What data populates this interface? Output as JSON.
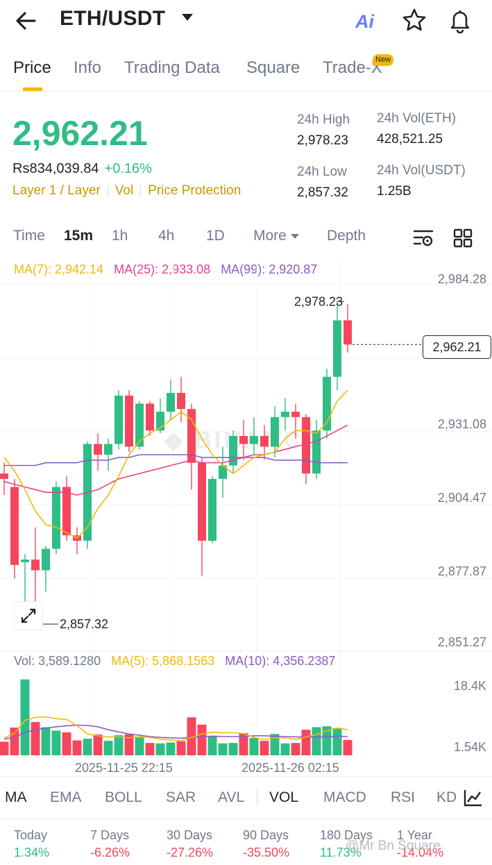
{
  "header": {
    "pair": "ETH/USDT",
    "ai_label": "Ai"
  },
  "tabs": [
    {
      "label": "Price",
      "active": true
    },
    {
      "label": "Info"
    },
    {
      "label": "Trading Data"
    },
    {
      "label": "Square"
    },
    {
      "label": "Trade-X",
      "badge": "New"
    }
  ],
  "ticker": {
    "last_price": "2,962.21",
    "fiat_price": "Rs834,039.84",
    "change_pct": "+0.16%",
    "tags": [
      "Layer 1 / Layer",
      "Vol",
      "Price Protection"
    ],
    "high_label": "24h High",
    "high_value": "2,978.23",
    "low_label": "24h Low",
    "low_value": "2,857.32",
    "vol_base_label": "24h Vol(ETH)",
    "vol_base_value": "428,521.25",
    "vol_quote_label": "24h Vol(USDT)",
    "vol_quote_value": "1.25B"
  },
  "intervals": [
    "Time",
    "15m",
    "1h",
    "4h",
    "1D",
    "More",
    "Depth"
  ],
  "active_interval": "15m",
  "ma_legend": {
    "ma7": "MA(7): 2,942.14",
    "ma25": "MA(25): 2,933.08",
    "ma99": "MA(99): 2,920.87"
  },
  "vol_legend": {
    "vol": "Vol: 3,589.1280",
    "ma5": "MA(5): 5,868.1563",
    "ma10": "MA(10): 4,356.2387"
  },
  "indicators": [
    "MA",
    "EMA",
    "BOLL",
    "SAR",
    "AVL",
    "VOL",
    "MACD",
    "RSI",
    "KD"
  ],
  "performance": [
    {
      "label": "Today",
      "value": "1.34%",
      "trend": "up"
    },
    {
      "label": "7 Days",
      "value": "-6.26%",
      "trend": "down"
    },
    {
      "label": "30 Days",
      "value": "-27.26%",
      "trend": "down"
    },
    {
      "label": "90 Days",
      "value": "-35.50%",
      "trend": "down"
    },
    {
      "label": "180 Days",
      "value": "11.73%",
      "trend": "up"
    },
    {
      "label": "1 Year",
      "value": "-14.04%",
      "trend": "down"
    }
  ],
  "watermark": "@Mr Bn Square",
  "colors": {
    "up": "#2ebd85",
    "down": "#f6465d",
    "accent": "#f0b90b",
    "ma7": "#f0b90b",
    "ma25": "#e83e8c",
    "ma99": "#8b5cc4"
  },
  "chart_data": {
    "type": "candlestick",
    "price_axis_ticks": [
      "2,984.28",
      "2,931.08",
      "2,904.47",
      "2,877.87",
      "2,851.27"
    ],
    "volume_axis_ticks": [
      "18.4K",
      "1.54K"
    ],
    "time_labels": [
      "2025-11-25 22:15",
      "2025-11-26 02:15"
    ],
    "high_marker": "2,978.23",
    "low_marker": "2,857.32",
    "last_price_label": "2,962.21",
    "ylim": [
      2851.27,
      2984.28
    ],
    "candles": [
      {
        "o": 2914,
        "c": 2912,
        "h": 2918,
        "l": 2906,
        "v": 3200
      },
      {
        "o": 2909,
        "c": 2880,
        "h": 2912,
        "l": 2875,
        "v": 6500
      },
      {
        "o": 2881,
        "c": 2882,
        "h": 2884,
        "l": 2858,
        "v": 17800
      },
      {
        "o": 2882,
        "c": 2878,
        "h": 2894,
        "l": 2864,
        "v": 7800
      },
      {
        "o": 2878,
        "c": 2886,
        "h": 2887,
        "l": 2870,
        "v": 6600
      },
      {
        "o": 2886,
        "c": 2909,
        "h": 2911,
        "l": 2884,
        "v": 5800
      },
      {
        "o": 2909,
        "c": 2891,
        "h": 2913,
        "l": 2889,
        "v": 5400
      },
      {
        "o": 2891,
        "c": 2889,
        "h": 2894,
        "l": 2884,
        "v": 3500
      },
      {
        "o": 2889,
        "c": 2925,
        "h": 2926,
        "l": 2886,
        "v": 3900
      },
      {
        "o": 2925,
        "c": 2921,
        "h": 2929,
        "l": 2915,
        "v": 4900
      },
      {
        "o": 2921,
        "c": 2925,
        "h": 2927,
        "l": 2915,
        "v": 3400
      },
      {
        "o": 2925,
        "c": 2943,
        "h": 2945,
        "l": 2923,
        "v": 4700
      },
      {
        "o": 2943,
        "c": 2924,
        "h": 2945,
        "l": 2922,
        "v": 4900
      },
      {
        "o": 2924,
        "c": 2940,
        "h": 2941,
        "l": 2923,
        "v": 4200
      },
      {
        "o": 2940,
        "c": 2930,
        "h": 2941,
        "l": 2928,
        "v": 2900
      },
      {
        "o": 2930,
        "c": 2937,
        "h": 2942,
        "l": 2929,
        "v": 2800
      },
      {
        "o": 2937,
        "c": 2944,
        "h": 2949,
        "l": 2934,
        "v": 3000
      },
      {
        "o": 2944,
        "c": 2938,
        "h": 2950,
        "l": 2933,
        "v": 3300
      },
      {
        "o": 2938,
        "c": 2918,
        "h": 2940,
        "l": 2908,
        "v": 8900
      },
      {
        "o": 2918,
        "c": 2889,
        "h": 2920,
        "l": 2876,
        "v": 7200
      },
      {
        "o": 2889,
        "c": 2912,
        "h": 2913,
        "l": 2888,
        "v": 4500
      },
      {
        "o": 2912,
        "c": 2917,
        "h": 2924,
        "l": 2905,
        "v": 2800
      },
      {
        "o": 2917,
        "c": 2928,
        "h": 2930,
        "l": 2914,
        "v": 2900
      },
      {
        "o": 2928,
        "c": 2925,
        "h": 2934,
        "l": 2919,
        "v": 5200
      },
      {
        "o": 2925,
        "c": 2928,
        "h": 2935,
        "l": 2921,
        "v": 4100
      },
      {
        "o": 2928,
        "c": 2924,
        "h": 2932,
        "l": 2919,
        "v": 3400
      },
      {
        "o": 2924,
        "c": 2935,
        "h": 2939,
        "l": 2920,
        "v": 5000
      },
      {
        "o": 2935,
        "c": 2937,
        "h": 2942,
        "l": 2930,
        "v": 2800
      },
      {
        "o": 2937,
        "c": 2935,
        "h": 2940,
        "l": 2927,
        "v": 2900
      },
      {
        "o": 2935,
        "c": 2914,
        "h": 2936,
        "l": 2910,
        "v": 6000
      },
      {
        "o": 2914,
        "c": 2930,
        "h": 2934,
        "l": 2912,
        "v": 6600
      },
      {
        "o": 2930,
        "c": 2950,
        "h": 2953,
        "l": 2927,
        "v": 6800
      },
      {
        "o": 2950,
        "c": 2971,
        "h": 2978,
        "l": 2945,
        "v": 6400
      },
      {
        "o": 2971,
        "c": 2962,
        "h": 2977,
        "l": 2959,
        "v": 3589
      }
    ],
    "ma7": [
      2920,
      2915,
      2908,
      2900,
      2895,
      2894,
      2892,
      2890,
      2894,
      2901,
      2906,
      2913,
      2921,
      2926,
      2929,
      2931,
      2934,
      2937,
      2934,
      2927,
      2921,
      2917,
      2914,
      2917,
      2920,
      2921,
      2922,
      2927,
      2930,
      2930,
      2929,
      2933,
      2941,
      2945
    ],
    "ma25": [
      2911,
      2910,
      2909,
      2908,
      2907,
      2907,
      2907,
      2906,
      2907,
      2908,
      2910,
      2912,
      2913,
      2914,
      2915,
      2916,
      2917,
      2918,
      2919,
      2918,
      2918,
      2918,
      2919,
      2920,
      2921,
      2921,
      2922,
      2923,
      2924,
      2925,
      2926,
      2928,
      2930,
      2932
    ],
    "ma99": [
      2917,
      2917,
      2917,
      2917,
      2918,
      2918,
      2918,
      2918,
      2919,
      2919,
      2919,
      2920,
      2920,
      2921,
      2921,
      2921,
      2921,
      2921,
      2921,
      2920,
      2920,
      2920,
      2920,
      2920,
      2920,
      2920,
      2919,
      2919,
      2919,
      2919,
      2918,
      2918,
      2918,
      2918
    ],
    "vol_ma5": [
      4000,
      5200,
      8200,
      8900,
      9000,
      8600,
      8400,
      7000,
      5000,
      4600,
      4300,
      4300,
      4100,
      4400,
      4200,
      3800,
      3600,
      3400,
      4200,
      5000,
      5400,
      5300,
      5300,
      5100,
      4200,
      3700,
      4100,
      4100,
      3700,
      4300,
      4900,
      5700,
      6400,
      6000
    ],
    "vol_ma10": [
      3800,
      4200,
      5400,
      6000,
      6400,
      6700,
      6900,
      7100,
      7000,
      6700,
      6000,
      5500,
      5000,
      4700,
      4400,
      4200,
      4100,
      4000,
      4200,
      4400,
      4500,
      4400,
      4400,
      4400,
      4600,
      4600,
      4500,
      4400,
      4300,
      4300,
      4300,
      4300,
      4500,
      4400
    ]
  }
}
